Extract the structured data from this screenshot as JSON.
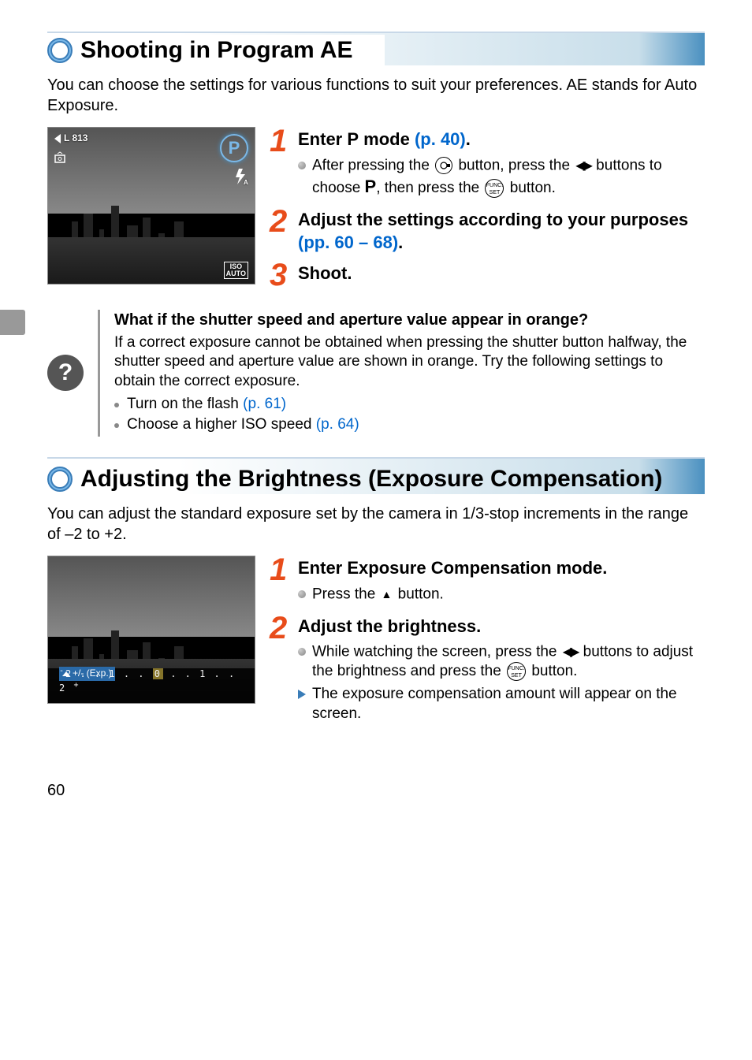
{
  "colors": {
    "accent_orange": "#e84c1a",
    "link_blue": "#0066cc",
    "ring_outer": "#3a7db8",
    "ring_inner": "#7ab8e8",
    "header_gradient_end": "#4a90c0"
  },
  "page_number": "60",
  "section1": {
    "title": "Shooting in Program AE",
    "intro": "You can choose the settings for various functions to suit your preferences. AE stands for Auto Exposure.",
    "thumb": {
      "top_left": "L 813",
      "iso_badge": "ISO\nAUTO",
      "p_badge": "P"
    },
    "steps": [
      {
        "num": "1",
        "title_pre": "Enter ",
        "title_mid": " mode ",
        "link": "(p. 40)",
        "title_post": ".",
        "bullets": [
          {
            "type": "grey",
            "segments": [
              {
                "t": "After pressing the "
              },
              {
                "icon": "mode-ring"
              },
              {
                "t": " button, press the "
              },
              {
                "icon": "leftright"
              },
              {
                "t": " buttons to choose "
              },
              {
                "icon": "P"
              },
              {
                "t": ", then press the "
              },
              {
                "icon": "func"
              },
              {
                "t": " button."
              }
            ]
          }
        ]
      },
      {
        "num": "2",
        "title_pre": "Adjust the settings according to your purposes ",
        "link": "(pp. 60 – 68)",
        "title_post": "."
      },
      {
        "num": "3",
        "title_pre": "Shoot."
      }
    ],
    "tip": {
      "question": "What if the shutter speed and aperture value appear in orange?",
      "body": "If a correct exposure cannot be obtained when pressing the shutter button halfway, the shutter speed and aperture value are shown in orange. Try the following settings to obtain the correct exposure.",
      "items": [
        {
          "text": "Turn on the flash ",
          "link": "(p. 61)"
        },
        {
          "text": "Choose a higher ISO speed ",
          "link": "(p. 64)"
        }
      ]
    }
  },
  "section2": {
    "title": "Adjusting the Brightness (Exposure Compensation)",
    "intro": "You can adjust the standard exposure set by the camera in 1/3-stop increments in the range of –2 to +2.",
    "thumb": {
      "exp_label": "+/- (Exp.)",
      "slider": "-2 . . 1 . . 0 . . 1 . . 2 +"
    },
    "steps": [
      {
        "num": "1",
        "title_pre": "Enter Exposure Compensation mode.",
        "bullets": [
          {
            "type": "grey",
            "segments": [
              {
                "t": "Press the "
              },
              {
                "icon": "up"
              },
              {
                "t": " button."
              }
            ]
          }
        ]
      },
      {
        "num": "2",
        "title_pre": "Adjust the brightness.",
        "bullets": [
          {
            "type": "grey",
            "segments": [
              {
                "t": "While watching the screen, press the "
              },
              {
                "icon": "leftright"
              },
              {
                "t": " buttons to adjust the brightness and press the "
              },
              {
                "icon": "func"
              },
              {
                "t": " button."
              }
            ]
          },
          {
            "type": "blue",
            "segments": [
              {
                "t": "The exposure compensation amount will appear on the screen."
              }
            ]
          }
        ]
      }
    ]
  }
}
